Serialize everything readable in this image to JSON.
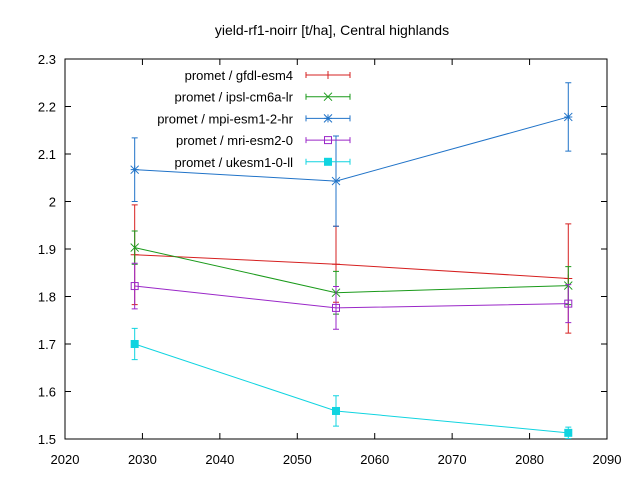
{
  "chart_data": {
    "type": "line",
    "title": "yield-rf1-noirr [t/ha], Central highlands",
    "xlabel": "",
    "ylabel": "",
    "xlim": [
      2020,
      2090
    ],
    "ylim": [
      1.5,
      2.3
    ],
    "x_ticks": [
      2020,
      2030,
      2040,
      2050,
      2060,
      2070,
      2080,
      2090
    ],
    "y_ticks": [
      1.5,
      1.6,
      1.7,
      1.8,
      1.9,
      2.0,
      2.1,
      2.2,
      2.3
    ],
    "y_tick_labels": [
      "1.5",
      "1.6",
      "1.7",
      "1.8",
      "1.9",
      "2",
      "2.1",
      "2.2",
      "2.3"
    ],
    "grid": false,
    "legend_position": "top-left",
    "x": [
      2029,
      2055,
      2085
    ],
    "series": [
      {
        "name": "promet / gfdl-esm4",
        "color": "#d62020",
        "marker": "plus",
        "values": [
          1.888,
          1.868,
          1.838
        ],
        "errors": [
          0.105,
          0.08,
          0.115
        ]
      },
      {
        "name": "promet / ipsl-cm6a-lr",
        "color": "#1a9a1a",
        "marker": "cross",
        "values": [
          1.903,
          1.808,
          1.823
        ],
        "errors": [
          0.035,
          0.045,
          0.04
        ]
      },
      {
        "name": "promet / mpi-esm1-2-hr",
        "color": "#2073c8",
        "marker": "star",
        "values": [
          2.067,
          2.043,
          2.178
        ],
        "errors": [
          0.067,
          0.095,
          0.072
        ]
      },
      {
        "name": "promet / mri-esm2-0",
        "color": "#9a27c8",
        "marker": "square-open",
        "values": [
          1.822,
          1.776,
          1.785
        ],
        "errors": [
          0.048,
          0.045,
          0.04
        ]
      },
      {
        "name": "promet / ukesm1-0-ll",
        "color": "#10d4e0",
        "marker": "square-filled",
        "values": [
          1.7,
          1.559,
          1.513
        ],
        "errors": [
          0.033,
          0.032,
          0.012
        ]
      }
    ]
  }
}
